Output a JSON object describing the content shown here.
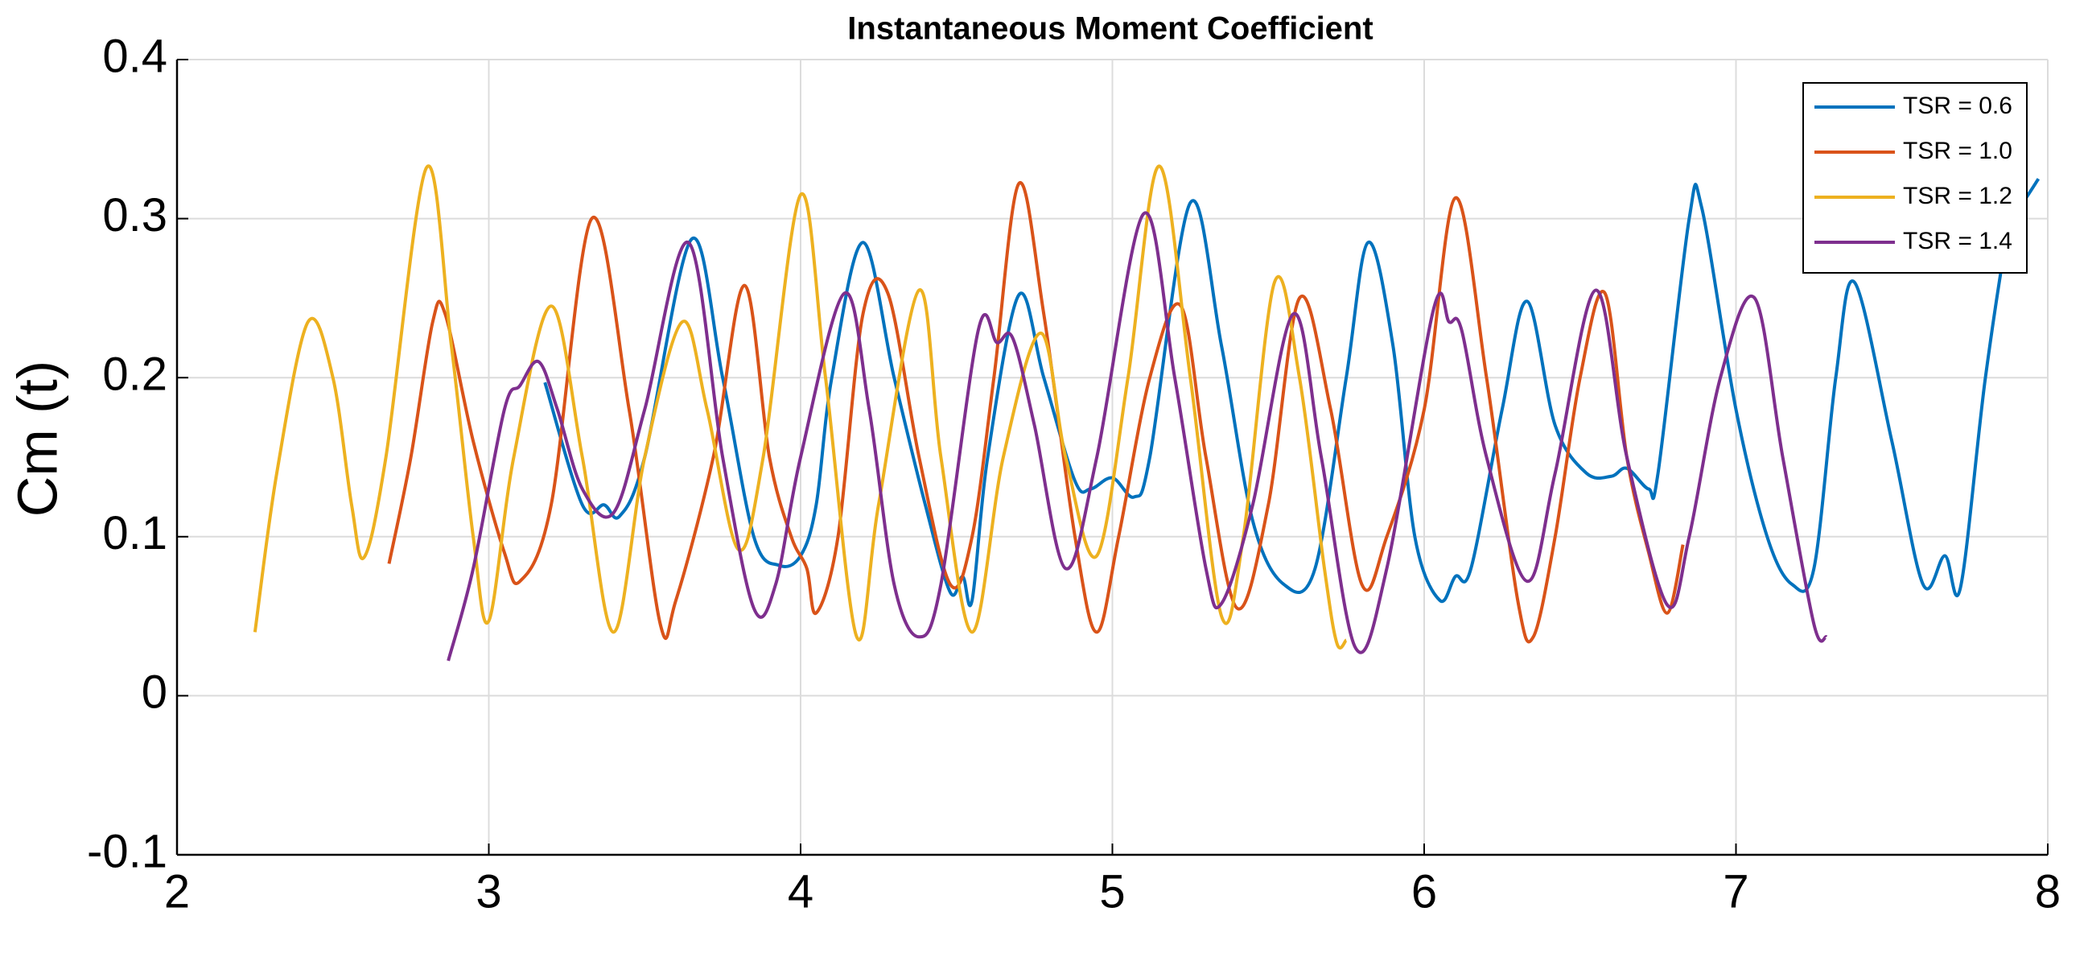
{
  "chart_data": {
    "type": "line",
    "title": "Instantaneous Moment Coefficient",
    "y_label": "Cm (t)",
    "xlim": [
      2,
      8
    ],
    "xticks": [
      2,
      3,
      4,
      5,
      6,
      7,
      8
    ],
    "ylim": [
      -0.1,
      0.4
    ],
    "yticks": [
      -0.1,
      0,
      0.1,
      0.2,
      0.3,
      0.4
    ],
    "grid": true,
    "legend": "upper right",
    "series": [
      {
        "name": "TSR = 0.6",
        "color": "#0072BD",
        "x": [
          3.18,
          3.3,
          3.37,
          3.42,
          3.5,
          3.65,
          3.75,
          3.85,
          3.93,
          4.0,
          4.05,
          4.1,
          4.2,
          4.3,
          4.4,
          4.48,
          4.52,
          4.55,
          4.6,
          4.7,
          4.78,
          4.88,
          4.93,
          5.0,
          5.07,
          5.12,
          5.25,
          5.35,
          5.45,
          5.55,
          5.65,
          5.75,
          5.82,
          5.9,
          5.97,
          6.05,
          6.1,
          6.15,
          6.25,
          6.33,
          6.42,
          6.52,
          6.6,
          6.65,
          6.72,
          6.75,
          6.85,
          6.89,
          7.0,
          7.1,
          7.18,
          7.25,
          7.32,
          7.38,
          7.5,
          7.6,
          7.67,
          7.72,
          7.8,
          7.88,
          7.92,
          7.97
        ],
        "values": [
          0.197,
          0.12,
          0.12,
          0.113,
          0.15,
          0.287,
          0.2,
          0.1,
          0.082,
          0.088,
          0.12,
          0.2,
          0.285,
          0.2,
          0.12,
          0.065,
          0.075,
          0.06,
          0.15,
          0.252,
          0.2,
          0.135,
          0.13,
          0.137,
          0.125,
          0.15,
          0.31,
          0.22,
          0.11,
          0.07,
          0.08,
          0.2,
          0.285,
          0.22,
          0.1,
          0.06,
          0.075,
          0.08,
          0.18,
          0.248,
          0.17,
          0.14,
          0.138,
          0.143,
          0.13,
          0.14,
          0.3,
          0.307,
          0.18,
          0.1,
          0.07,
          0.08,
          0.2,
          0.26,
          0.16,
          0.07,
          0.088,
          0.068,
          0.2,
          0.3,
          0.31,
          0.325
        ]
      },
      {
        "name": "TSR = 1.0",
        "color": "#D95319",
        "x": [
          2.68,
          2.75,
          2.82,
          2.86,
          2.95,
          3.05,
          3.1,
          3.2,
          3.33,
          3.45,
          3.55,
          3.6,
          3.72,
          3.82,
          3.9,
          3.97,
          4.02,
          4.05,
          4.12,
          4.2,
          4.28,
          4.38,
          4.48,
          4.55,
          4.62,
          4.7,
          4.78,
          4.88,
          4.95,
          5.02,
          5.12,
          5.22,
          5.3,
          5.4,
          5.5,
          5.6,
          5.7,
          5.8,
          5.88,
          6.0,
          6.1,
          6.2,
          6.3,
          6.35,
          6.42,
          6.5,
          6.58,
          6.65,
          6.72,
          6.78,
          6.83
        ],
        "values": [
          0.083,
          0.15,
          0.235,
          0.24,
          0.16,
          0.09,
          0.072,
          0.12,
          0.3,
          0.18,
          0.045,
          0.06,
          0.15,
          0.258,
          0.15,
          0.1,
          0.08,
          0.052,
          0.1,
          0.24,
          0.253,
          0.15,
          0.07,
          0.1,
          0.2,
          0.322,
          0.24,
          0.1,
          0.04,
          0.1,
          0.2,
          0.245,
          0.15,
          0.055,
          0.12,
          0.25,
          0.18,
          0.07,
          0.1,
          0.18,
          0.313,
          0.2,
          0.06,
          0.037,
          0.1,
          0.2,
          0.253,
          0.15,
          0.09,
          0.052,
          0.095
        ]
      },
      {
        "name": "TSR = 1.2",
        "color": "#EDB120",
        "x": [
          2.25,
          2.32,
          2.42,
          2.5,
          2.56,
          2.6,
          2.67,
          2.8,
          2.88,
          2.95,
          3.0,
          3.08,
          3.2,
          3.3,
          3.4,
          3.5,
          3.62,
          3.7,
          3.8,
          3.88,
          4.0,
          4.08,
          4.18,
          4.25,
          4.38,
          4.45,
          4.55,
          4.65,
          4.77,
          4.85,
          4.95,
          5.05,
          5.15,
          5.25,
          5.35,
          5.42,
          5.52,
          5.6,
          5.68,
          5.72,
          5.75
        ],
        "values": [
          0.04,
          0.14,
          0.235,
          0.2,
          0.12,
          0.087,
          0.15,
          0.332,
          0.22,
          0.1,
          0.047,
          0.15,
          0.245,
          0.15,
          0.04,
          0.15,
          0.235,
          0.18,
          0.092,
          0.15,
          0.315,
          0.2,
          0.037,
          0.12,
          0.255,
          0.15,
          0.04,
          0.15,
          0.228,
          0.15,
          0.088,
          0.2,
          0.333,
          0.2,
          0.05,
          0.1,
          0.26,
          0.2,
          0.08,
          0.033,
          0.035
        ]
      },
      {
        "name": "TSR = 1.4",
        "color": "#7E2F8E",
        "x": [
          2.87,
          2.95,
          3.05,
          3.1,
          3.16,
          3.22,
          3.3,
          3.4,
          3.5,
          3.64,
          3.75,
          3.85,
          3.92,
          4.0,
          4.14,
          4.22,
          4.3,
          4.38,
          4.45,
          4.57,
          4.63,
          4.68,
          4.75,
          4.85,
          4.95,
          5.1,
          5.2,
          5.3,
          5.35,
          5.45,
          5.58,
          5.67,
          5.78,
          5.88,
          6.03,
          6.08,
          6.12,
          6.2,
          6.33,
          6.42,
          6.55,
          6.65,
          6.78,
          6.85,
          6.95,
          7.06,
          7.15,
          7.25,
          7.29
        ],
        "values": [
          0.022,
          0.08,
          0.18,
          0.195,
          0.21,
          0.18,
          0.13,
          0.115,
          0.18,
          0.285,
          0.15,
          0.055,
          0.07,
          0.15,
          0.253,
          0.18,
          0.07,
          0.037,
          0.07,
          0.23,
          0.222,
          0.225,
          0.17,
          0.08,
          0.15,
          0.303,
          0.2,
          0.08,
          0.058,
          0.12,
          0.24,
          0.15,
          0.03,
          0.08,
          0.243,
          0.235,
          0.23,
          0.15,
          0.072,
          0.14,
          0.255,
          0.15,
          0.057,
          0.1,
          0.2,
          0.25,
          0.15,
          0.045,
          0.037
        ]
      }
    ]
  }
}
